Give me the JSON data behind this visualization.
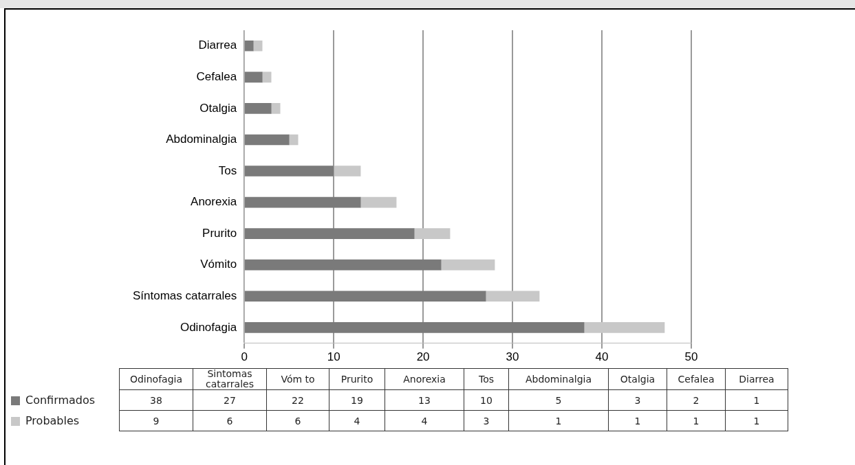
{
  "chart_data": [
    {
      "type": "bar",
      "orientation": "horizontal",
      "stacked": true,
      "categories": [
        "Diarrea",
        "Cefalea",
        "Otalgia",
        "Abdominalgia",
        "Tos",
        "Anorexia",
        "Prurito",
        "Vómito",
        "Síntomas catarrales",
        "Odinofagia"
      ],
      "series": [
        {
          "color": "#7a7a7a",
          "values": [
            1,
            2,
            3,
            5,
            10,
            13,
            19,
            22,
            27,
            38
          ]
        },
        {
          "color": "#c8c8c8",
          "values": [
            1,
            1,
            1,
            1,
            3,
            4,
            4,
            6,
            6,
            9
          ]
        }
      ],
      "xlim": [
        0,
        50
      ],
      "xticks": [
        0,
        10,
        20,
        30,
        40,
        50
      ],
      "grid": "x"
    },
    {
      "type": "other",
      "categories": [
        "Odinofagia",
        "Sintomas catarrales",
        "Vóm to",
        "Prurito",
        "Anorexia",
        "Tos",
        "Abdominalgia",
        "Otalgia",
        "Cefalea",
        "Diarrea"
      ],
      "series": [
        {
          "name": "Confirmados",
          "color": "#7a7a7a",
          "values": [
            38,
            27,
            22,
            19,
            13,
            10,
            5,
            3,
            2,
            1
          ]
        },
        {
          "name": "Probables",
          "color": "#c8c8c8",
          "values": [
            9,
            6,
            6,
            4,
            4,
            3,
            1,
            1,
            1,
            1
          ]
        }
      ],
      "data_labels": true,
      "legend": "left"
    }
  ]
}
